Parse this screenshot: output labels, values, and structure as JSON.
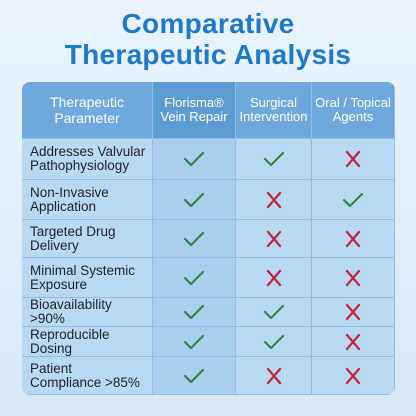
{
  "title": {
    "line1": "Comparative",
    "line2": "Therapeutic Analysis"
  },
  "table": {
    "headers": [
      "Therapeutic Parameter",
      "Florisma® Vein Repair",
      "Surgical Intervention",
      "Oral / Topical Agents"
    ],
    "rows": [
      {
        "label": "Addresses Valvular Pathophysiology",
        "marks": [
          true,
          true,
          false
        ]
      },
      {
        "label": "Non-Invasive Application",
        "marks": [
          true,
          false,
          true
        ]
      },
      {
        "label": "Targeted Drug Delivery",
        "marks": [
          true,
          false,
          false
        ]
      },
      {
        "label": "Minimal Systemic Exposure",
        "marks": [
          true,
          false,
          false
        ]
      },
      {
        "label": "Bioavailability >90%",
        "marks": [
          true,
          true,
          false
        ]
      },
      {
        "label": "Reproducible Dosing",
        "marks": [
          true,
          true,
          false
        ]
      },
      {
        "label": "Patient Compliance >85%",
        "marks": [
          true,
          false,
          false
        ]
      }
    ]
  }
}
